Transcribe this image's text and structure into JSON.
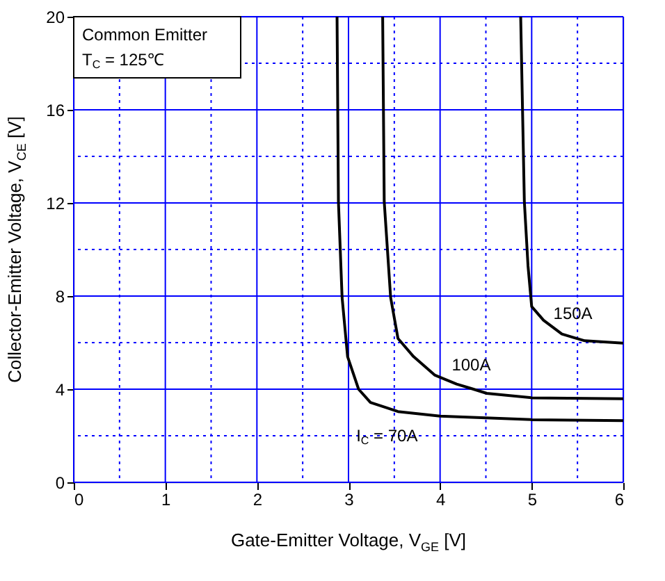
{
  "chart_data": {
    "type": "line",
    "xlabel": "Gate-Emitter Voltage, V$_{GE}$ [V]",
    "ylabel": "Collector-Emitter Voltage, V$_{CE}$ [V]",
    "series": [
      {
        "color": "#000000",
        "x": [
          2.875,
          2.89,
          2.93,
          2.99,
          3.11,
          3.24,
          3.42,
          3.54,
          4.0,
          5.0,
          6.0
        ],
        "values": [
          20,
          12.06,
          7.94,
          5.4,
          4.0,
          3.43,
          3.2,
          3.04,
          2.84,
          2.69,
          2.65
        ]
      },
      {
        "color": "#000000",
        "x": [
          3.373,
          3.39,
          3.46,
          3.54,
          3.71,
          3.94,
          4.18,
          4.34,
          4.51,
          5.0,
          6.0
        ],
        "values": [
          20,
          12.06,
          7.94,
          6.18,
          5.4,
          4.61,
          4.22,
          4.03,
          3.82,
          3.63,
          3.59
        ]
      },
      {
        "color": "#000000",
        "x": [
          4.88,
          4.92,
          4.96,
          5.0,
          5.13,
          5.33,
          5.45,
          5.58,
          6.0
        ],
        "values": [
          20,
          12.06,
          9.3,
          7.55,
          6.96,
          6.37,
          6.23,
          6.08,
          5.98
        ]
      }
    ],
    "annotations": [
      "Common Emitter",
      "T$_{C}$ = 125℃",
      {
        "text": "150A",
        "x": 5.45,
        "y": 6.23
      },
      {
        "text": "100A",
        "x": 4.34,
        "y": 4.03
      },
      {
        "text": "I$_{C}$ = 70A",
        "x": 3.42,
        "y": 3.2
      }
    ],
    "xlim": [
      0,
      6
    ],
    "ylim": [
      0,
      20
    ],
    "xticks": [
      0,
      {
        "value": 0.5,
        "label": null
      },
      1,
      {
        "value": 1.5,
        "label": null
      },
      2,
      {
        "value": 2.5,
        "label": null
      },
      3,
      {
        "value": 3.5,
        "label": null
      },
      4,
      {
        "value": 4.5,
        "label": null
      },
      5,
      {
        "value": 5.5,
        "label": null
      },
      6
    ],
    "yticks": [
      0,
      {
        "value": 2,
        "label": null
      },
      4,
      {
        "value": 6,
        "label": null
      },
      8,
      {
        "value": 10,
        "label": null
      },
      12,
      {
        "value": 14,
        "label": null
      },
      16,
      {
        "value": 18,
        "label": null
      },
      20
    ],
    "grid": true,
    "marker": "none",
    "line_style": "solid"
  }
}
